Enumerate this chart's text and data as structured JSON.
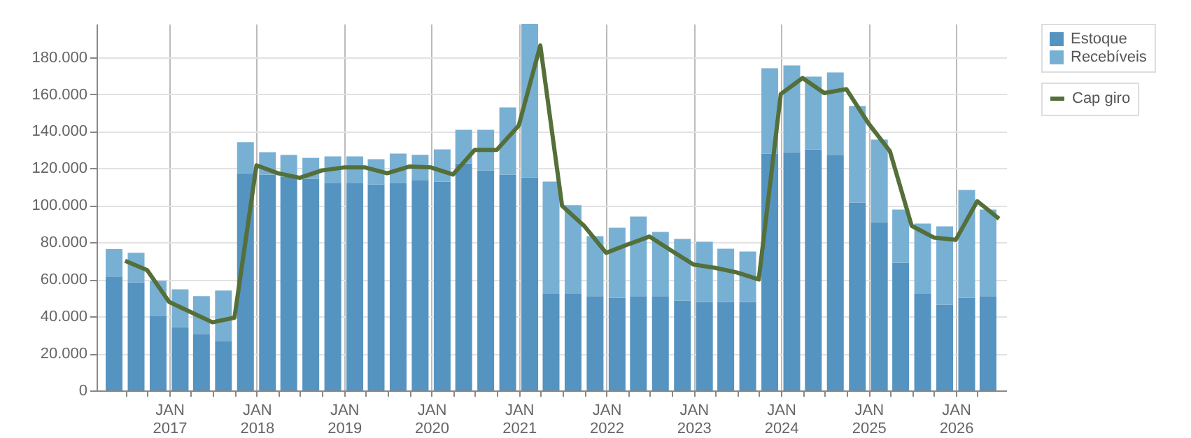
{
  "chart_data": {
    "type": "bar",
    "stacked": true,
    "legend": "top right",
    "grid": true,
    "x": [
      "2016-05-15",
      "2016-08-15",
      "2016-11-15",
      "2017-02-15",
      "2017-05-15",
      "2017-08-15",
      "2017-11-15",
      "2018-02-15",
      "2018-05-15",
      "2018-08-15",
      "2018-11-15",
      "2019-02-15",
      "2019-05-15",
      "2019-08-15",
      "2019-11-15",
      "2020-02-15",
      "2020-05-15",
      "2020-08-15",
      "2020-11-15",
      "2021-02-15",
      "2021-05-15",
      "2021-08-15",
      "2021-11-15",
      "2022-02-15",
      "2022-05-15",
      "2022-08-15",
      "2022-11-15",
      "2023-02-15",
      "2023-05-15",
      "2023-08-15",
      "2023-11-15",
      "2024-02-15",
      "2024-05-15",
      "2024-08-15",
      "2024-11-15",
      "2025-02-15",
      "2025-05-15",
      "2025-08-15",
      "2025-11-15",
      "2026-02-15",
      "2026-05-15"
    ],
    "series": [
      {
        "name": "Estoque",
        "color": "#5593c0",
        "values": [
          61200,
          58400,
          40300,
          34200,
          30500,
          26700,
          117300,
          116600,
          115300,
          114300,
          112100,
          112100,
          111300,
          112100,
          113600,
          112800,
          122600,
          118800,
          116600,
          115100,
          52400,
          52400,
          50900,
          50100,
          50900,
          50900,
          48600,
          47800,
          47800,
          47800,
          127900,
          128700,
          130200,
          127200,
          101500,
          90900,
          69000,
          52400,
          46300,
          50100,
          50900
        ]
      },
      {
        "name": "Recebíveis",
        "color": "#78b0d4",
        "values": [
          15100,
          15900,
          18900,
          20400,
          20400,
          27200,
          16700,
          12100,
          11900,
          11300,
          14300,
          14300,
          13600,
          15800,
          13600,
          17400,
          18200,
          22000,
          36200,
          82900,
          60400,
          47600,
          32400,
          37800,
          43000,
          34700,
          33200,
          32500,
          28700,
          27200,
          46100,
          46800,
          39300,
          44500,
          52100,
          44600,
          28700,
          37700,
          42300,
          58200,
          46800
        ]
      },
      {
        "name": "Cap giro",
        "type": "line",
        "color": "#546f3a",
        "x": [
          "2016-06-30",
          "2016-09-30",
          "2016-12-31",
          "2017-03-31",
          "2017-06-30",
          "2017-09-30",
          "2017-12-31",
          "2018-03-31",
          "2018-06-30",
          "2018-09-30",
          "2018-12-31",
          "2019-03-31",
          "2019-06-30",
          "2019-09-30",
          "2019-12-31",
          "2020-03-31",
          "2020-06-30",
          "2020-09-30",
          "2020-12-31",
          "2021-03-31",
          "2021-06-30",
          "2021-09-30",
          "2021-12-31",
          "2022-03-31",
          "2022-06-30",
          "2022-09-30",
          "2022-12-31",
          "2023-03-31",
          "2023-06-30",
          "2023-09-30",
          "2023-12-31",
          "2024-03-31",
          "2024-06-30",
          "2024-09-30",
          "2024-12-31",
          "2025-03-31",
          "2025-06-30",
          "2025-09-30",
          "2025-12-31",
          "2026-03-31",
          "2026-06-30"
        ],
        "values": [
          70000,
          65000,
          47800,
          42300,
          36800,
          39300,
          121600,
          117300,
          114800,
          118800,
          120400,
          120400,
          117300,
          120900,
          120400,
          116600,
          129900,
          129900,
          143000,
          186300,
          99700,
          88900,
          74300,
          78800,
          83100,
          75500,
          68000,
          66200,
          63700,
          59900,
          160100,
          168700,
          160600,
          162700,
          144300,
          129200,
          88900,
          82600,
          81300,
          102200,
          92700
        ]
      }
    ],
    "xlim": [
      "2016-04-01",
      "2026-07-01"
    ],
    "xticks": [
      {
        "value": "2016-07-01",
        "label": null
      },
      {
        "value": "2016-10-01",
        "label": null
      },
      {
        "value": "2017-01-01",
        "label": "JAN 2017"
      },
      {
        "value": "2017-04-01",
        "label": null
      },
      {
        "value": "2017-07-01",
        "label": null
      },
      {
        "value": "2017-10-01",
        "label": null
      },
      {
        "value": "2018-01-01",
        "label": "JAN 2018"
      },
      {
        "value": "2018-04-01",
        "label": null
      },
      {
        "value": "2018-07-01",
        "label": null
      },
      {
        "value": "2018-10-01",
        "label": null
      },
      {
        "value": "2019-01-01",
        "label": "JAN 2019"
      },
      {
        "value": "2019-04-01",
        "label": null
      },
      {
        "value": "2019-07-01",
        "label": null
      },
      {
        "value": "2019-10-01",
        "label": null
      },
      {
        "value": "2020-01-01",
        "label": "JAN 2020"
      },
      {
        "value": "2020-04-01",
        "label": null
      },
      {
        "value": "2020-07-01",
        "label": null
      },
      {
        "value": "2020-10-01",
        "label": null
      },
      {
        "value": "2021-01-01",
        "label": "JAN 2021"
      },
      {
        "value": "2021-04-01",
        "label": null
      },
      {
        "value": "2021-07-01",
        "label": null
      },
      {
        "value": "2021-10-01",
        "label": null
      },
      {
        "value": "2022-01-01",
        "label": "JAN 2022"
      },
      {
        "value": "2022-04-01",
        "label": null
      },
      {
        "value": "2022-07-01",
        "label": null
      },
      {
        "value": "2022-10-01",
        "label": null
      },
      {
        "value": "2023-01-01",
        "label": "JAN 2023"
      },
      {
        "value": "2023-04-01",
        "label": null
      },
      {
        "value": "2023-07-01",
        "label": null
      },
      {
        "value": "2023-10-01",
        "label": null
      },
      {
        "value": "2024-01-01",
        "label": "JAN 2024"
      },
      {
        "value": "2024-04-01",
        "label": null
      },
      {
        "value": "2024-07-01",
        "label": null
      },
      {
        "value": "2024-10-01",
        "label": null
      },
      {
        "value": "2025-01-01",
        "label": "JAN 2025"
      },
      {
        "value": "2025-04-01",
        "label": null
      },
      {
        "value": "2025-07-01",
        "label": null
      },
      {
        "value": "2025-10-01",
        "label": null
      },
      {
        "value": "2026-01-01",
        "label": "JAN 2026"
      },
      {
        "value": "2026-04-01",
        "label": null
      }
    ],
    "ylim": [
      0,
      198000
    ],
    "yticks": [
      0,
      {
        "value": 20000,
        "label": "20.000"
      },
      {
        "value": 40000,
        "label": "40.000"
      },
      {
        "value": 60000,
        "label": "60.000"
      },
      {
        "value": 80000,
        "label": "80.000"
      },
      {
        "value": 100000,
        "label": "100.000"
      },
      {
        "value": 120000,
        "label": "120.000"
      },
      {
        "value": 140000,
        "label": "140.000"
      },
      {
        "value": 160000,
        "label": "160.000"
      },
      {
        "value": 180000,
        "label": "180.000"
      }
    ]
  }
}
